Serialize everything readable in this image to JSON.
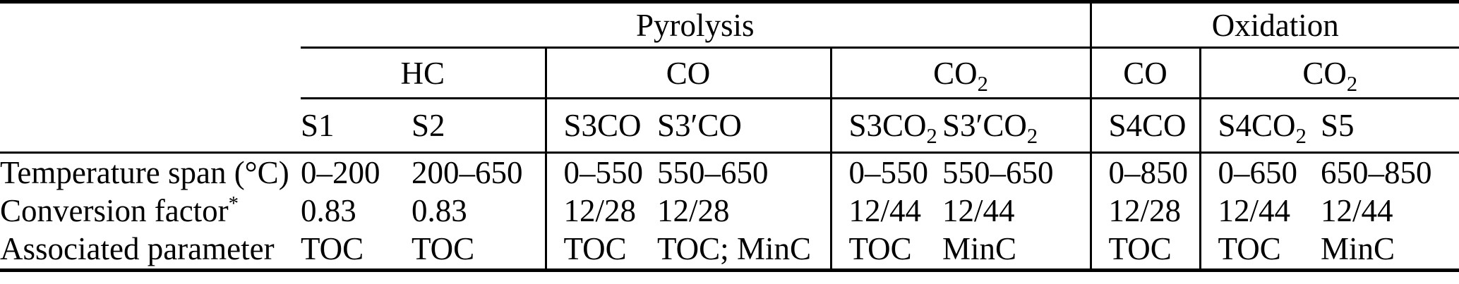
{
  "table": {
    "group_headers": {
      "pyrolysis": "Pyrolysis",
      "oxidation": "Oxidation"
    },
    "gas_headers": {
      "hc": "HC",
      "co_pyr": "CO",
      "co2_pyr": "CO_2",
      "co_oxi": "CO",
      "co2_oxi": "CO_2"
    },
    "sample_headers": {
      "s1": "S1",
      "s2": "S2",
      "s3co": "S3CO",
      "s3pco": "S3'CO",
      "s3co2": "S3CO_2",
      "s3pco2": "S3'CO_2",
      "s4co": "S4CO",
      "s4co2": "S4CO_2",
      "s5": "S5"
    },
    "rows": [
      {
        "label": "Temperature span (°C)",
        "values": [
          "0–200",
          "200–650",
          "0–550",
          "550–650",
          "0–550",
          "550–650",
          "0–850",
          "0–650",
          "650–850"
        ]
      },
      {
        "label": "Conversion factor*",
        "values": [
          "0.83",
          "0.83",
          "12/28",
          "12/28",
          "12/44",
          "12/44",
          "12/28",
          "12/44",
          "12/44"
        ]
      },
      {
        "label": "Associated parameter",
        "values": [
          "TOC",
          "TOC",
          "TOC",
          "TOC; MinC",
          "TOC",
          "MinC",
          "TOC",
          "TOC",
          "MinC"
        ]
      }
    ]
  }
}
